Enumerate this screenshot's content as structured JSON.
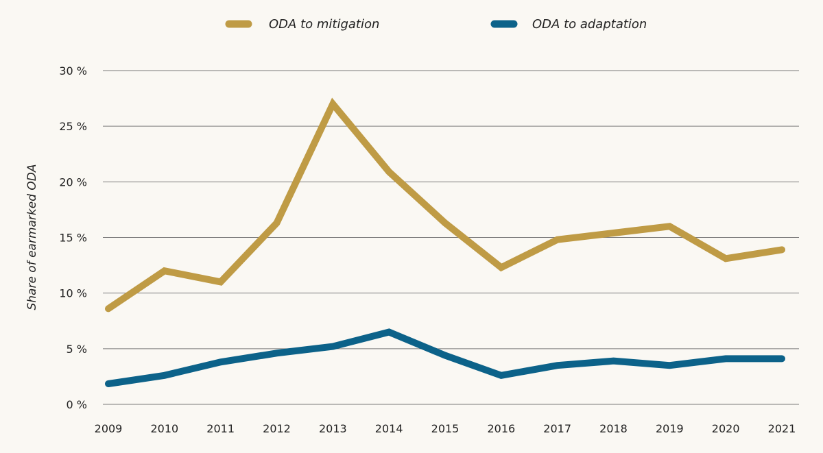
{
  "chart_data": {
    "type": "line",
    "title": "",
    "xlabel": "",
    "ylabel": "Share of earmarked ODA",
    "x": [
      2009,
      2010,
      2011,
      2012,
      2013,
      2014,
      2015,
      2016,
      2017,
      2018,
      2019,
      2020,
      2021
    ],
    "x_tick_labels": [
      "2009",
      "2010",
      "2011",
      "2012",
      "2013",
      "2014",
      "2015",
      "2016",
      "2017",
      "2018",
      "2019",
      "2020",
      "2021"
    ],
    "ylim": [
      0,
      30
    ],
    "y_ticks": [
      0,
      5,
      10,
      15,
      20,
      25,
      30
    ],
    "y_tick_labels": [
      "0 %",
      "5 %",
      "10 %",
      "15 %",
      "20 %",
      "25 %",
      "30 %"
    ],
    "grid": true,
    "legend_position": "top-center",
    "series": [
      {
        "name": "ODA to mitigation",
        "color": "#bf9b45",
        "values": [
          8.6,
          12.0,
          11.0,
          16.3,
          27.0,
          20.9,
          16.3,
          12.3,
          14.8,
          15.4,
          16.0,
          13.1,
          13.9
        ]
      },
      {
        "name": "ODA to adaptation",
        "color": "#0c6289",
        "values": [
          1.85,
          2.6,
          3.8,
          4.6,
          5.2,
          6.5,
          4.4,
          2.6,
          3.5,
          3.9,
          3.5,
          4.1,
          4.1
        ]
      }
    ]
  }
}
